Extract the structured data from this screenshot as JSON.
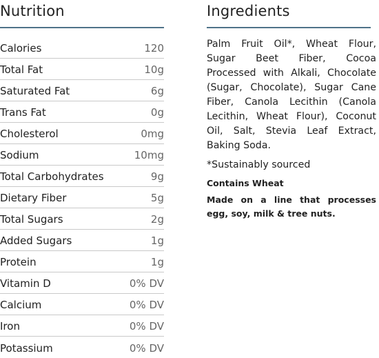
{
  "colors": {
    "rule": "#4f7389",
    "text": "#222222",
    "value": "#666666",
    "divider": "#c9c9c9"
  },
  "nutrition": {
    "heading": "Nutrition",
    "rows": [
      {
        "label": "Calories",
        "value": "120"
      },
      {
        "label": "Total Fat",
        "value": "10g"
      },
      {
        "label": "Saturated Fat",
        "value": "6g"
      },
      {
        "label": "Trans Fat",
        "value": "0g"
      },
      {
        "label": "Cholesterol",
        "value": "0mg"
      },
      {
        "label": "Sodium",
        "value": "10mg"
      },
      {
        "label": "Total Carbohydrates",
        "value": "9g"
      },
      {
        "label": "Dietary Fiber",
        "value": "5g"
      },
      {
        "label": "Total Sugars",
        "value": "2g"
      },
      {
        "label": "Added Sugars",
        "value": "1g"
      },
      {
        "label": "Protein",
        "value": "1g"
      },
      {
        "label": "Vitamin D",
        "value": "0% DV"
      },
      {
        "label": "Calcium",
        "value": "0% DV"
      },
      {
        "label": "Iron",
        "value": "0% DV"
      },
      {
        "label": "Potassium",
        "value": "0% DV"
      }
    ]
  },
  "ingredients": {
    "heading": "Ingredients",
    "text": "Palm Fruit Oil*, Wheat Flour, Sugar Beet Fiber, Cocoa Processed with Alkali, Chocolate (Sugar, Chocolate), Sugar Cane Fiber, Canola Lecithin (Canola Lecithin, Wheat Flour), Coconut Oil, Salt, Stevia Leaf Extract, Baking Soda.",
    "note": "*Sustainably sourced",
    "contains": "Contains Wheat",
    "facility": "Made on a line that processes egg, soy, milk & tree nuts."
  }
}
